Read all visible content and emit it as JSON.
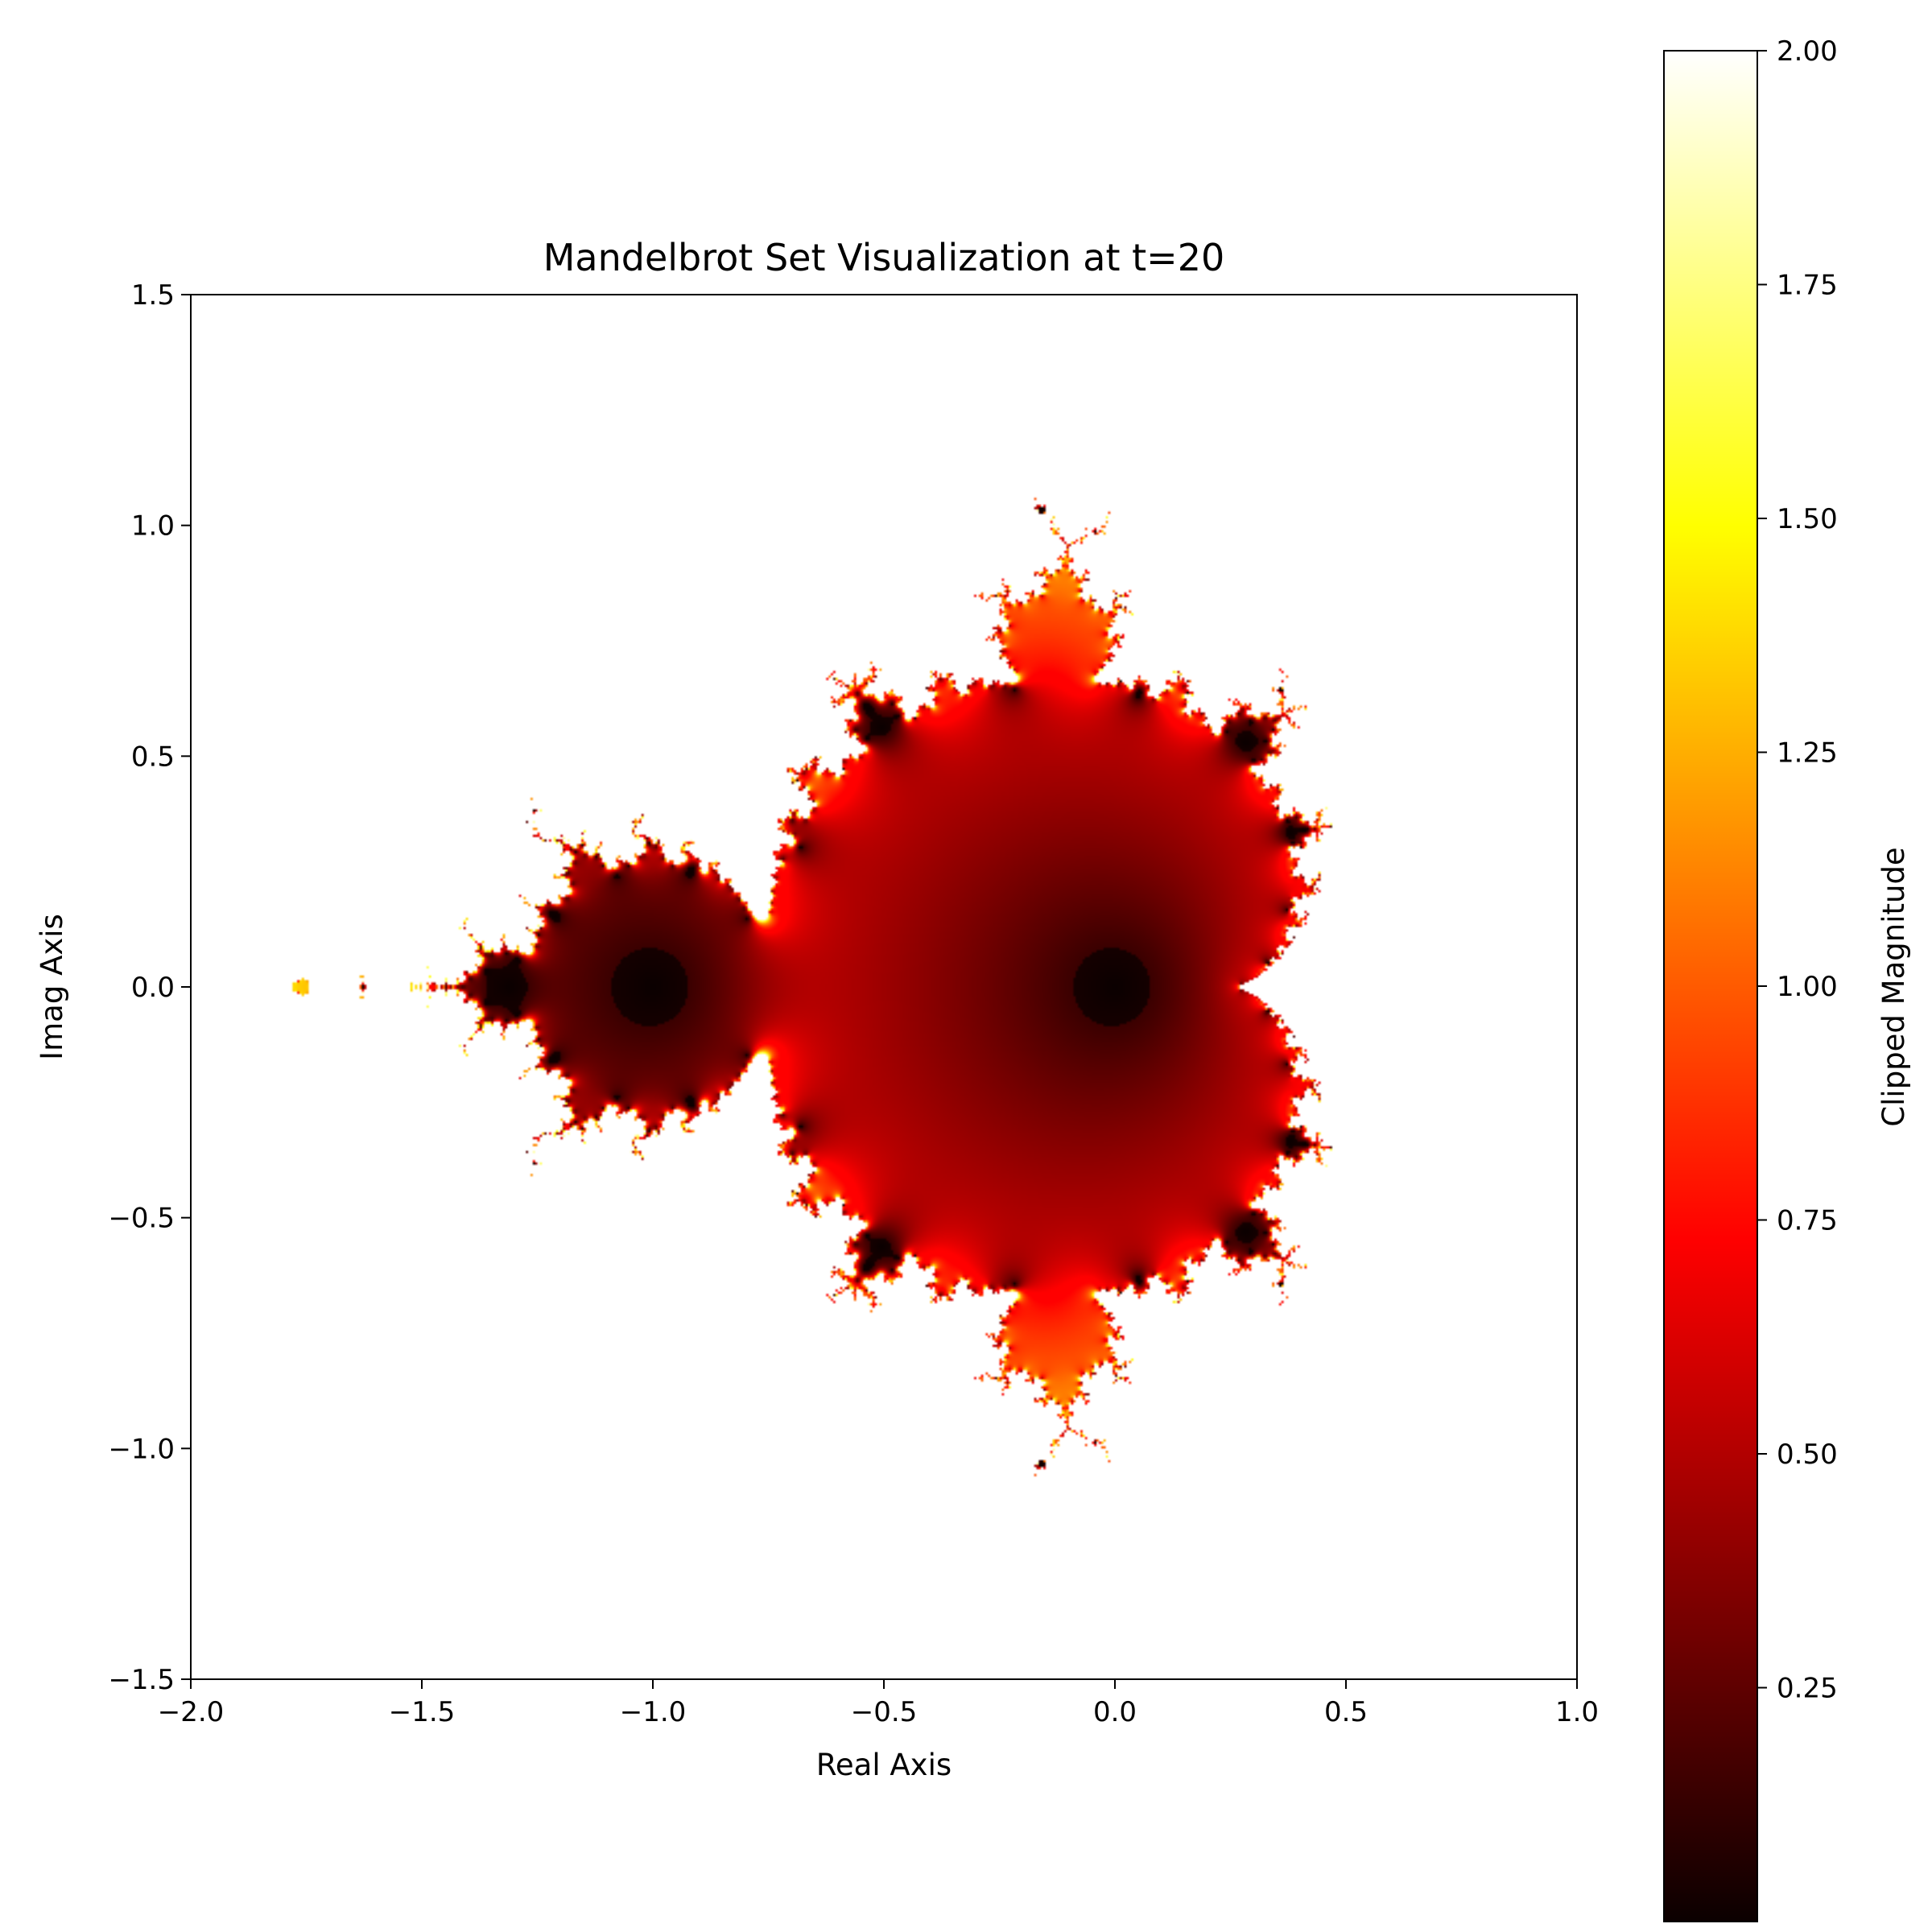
{
  "chart_data": {
    "type": "heatmap",
    "title": "Mandelbrot Set Visualization at t=20",
    "xlabel": "Real Axis",
    "ylabel": "Imag Axis",
    "xlim": [
      -2.0,
      1.0
    ],
    "ylim": [
      -1.5,
      1.5
    ],
    "x_ticks": [
      "−2.0",
      "−1.5",
      "−1.0",
      "−0.5",
      "0.0",
      "0.5",
      "1.0"
    ],
    "x_tick_values": [
      -2.0,
      -1.5,
      -1.0,
      -0.5,
      0.0,
      0.5,
      1.0
    ],
    "y_ticks": [
      "1.5",
      "1.0",
      "0.5",
      "0.0",
      "−0.5",
      "−1.0",
      "−1.5"
    ],
    "y_tick_values": [
      1.5,
      1.0,
      0.5,
      0.0,
      -0.5,
      -1.0,
      -1.5
    ],
    "colorbar": {
      "label": "Clipped Magnitude",
      "colormap": "hot",
      "range": [
        0.0,
        2.0
      ],
      "ticks": [
        "2.00",
        "1.75",
        "1.50",
        "1.25",
        "1.00",
        "0.75",
        "0.50",
        "0.25"
      ],
      "tick_values": [
        2.0,
        1.75,
        1.5,
        1.25,
        1.0,
        0.75,
        0.5,
        0.25
      ]
    },
    "grid": false,
    "description_values": {
      "max_iterations": 20,
      "clip_max": 2.0
    }
  },
  "colors": {
    "hot_black": "#0b0000",
    "hot_red": "#ff0000",
    "hot_yellow": "#ffff00",
    "hot_white": "#ffffff",
    "axis": "#000000"
  }
}
